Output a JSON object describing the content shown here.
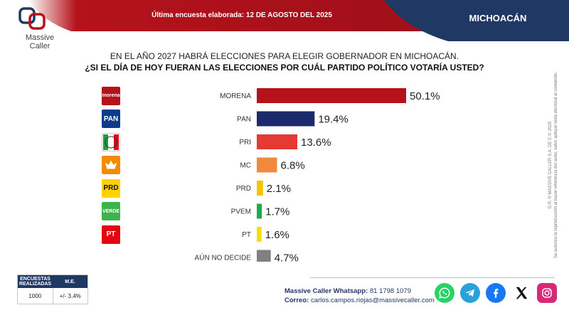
{
  "header": {
    "survey_date": "Última encuesta elaborada: 12 DE AGOSTO DEL 2025",
    "region": "MICHOACÁN",
    "brand_line1": "Massive",
    "brand_line2": "Caller",
    "colors": {
      "red_banner": "#b5121b",
      "navy_banner": "#1f3864"
    }
  },
  "question": {
    "line1": "EN EL AÑO 2027 HABRÁ ELECCIONES PARA ELEGIR GOBERNADOR EN MICHOACÁN.",
    "line2": "¿SI EL DÍA DE HOY FUERAN LAS ELECCIONES POR CUÁL PARTIDO POLÍTICO VOTARÍA USTED?"
  },
  "chart_data": {
    "type": "bar",
    "orientation": "horizontal",
    "categories": [
      "MORENA",
      "PAN",
      "PRI",
      "MC",
      "PRD",
      "PVEM",
      "PT",
      "AÚN NO DECIDE"
    ],
    "values": [
      50.1,
      19.4,
      13.6,
      6.8,
      2.1,
      1.7,
      1.6,
      4.7
    ],
    "value_labels": [
      "50.1%",
      "19.4%",
      "13.6%",
      "6.8%",
      "2.1%",
      "1.7%",
      "1.6%",
      "4.7%"
    ],
    "colors": [
      "#b5121b",
      "#1a2a6c",
      "#e53935",
      "#ef8a3c",
      "#f5c400",
      "#1faa4f",
      "#f5e100",
      "#808080"
    ],
    "logo_text": [
      "morena",
      "PAN",
      "PRI",
      "",
      "PRD",
      "VERDE",
      "PT",
      ""
    ],
    "logo_colors": [
      "#b5121b",
      "#0d3b8c",
      "#ffffff",
      "#f28b00",
      "#ffd100",
      "#3bb54a",
      "#e30613",
      ""
    ],
    "xlim": [
      0,
      55
    ],
    "title": "",
    "xlabel": "",
    "ylabel": ""
  },
  "copyright": {
    "line1": "D.R. © MASSIVE CALLER S.A. DE C.V. 2025",
    "line2": "Se autoriza la reproducción al hacer referencia del autor, salvo apliqué veda electoral al contenido."
  },
  "stats": {
    "col1_header": "ENCUESTAS REALIZADAS",
    "col2_header": "M.E.",
    "col1_value": "1000",
    "col2_value": "+/- 3.4%"
  },
  "footer": {
    "whatsapp_label": "Massive Caller Whatsapp:",
    "whatsapp_value": "81 1798 1079",
    "email_label": "Correo:",
    "email_value": "carlos.campos.riojas@massivecaller.com"
  },
  "socials": [
    {
      "name": "whatsapp-icon",
      "color": "#25d366"
    },
    {
      "name": "telegram-icon",
      "color": "#2aa1da"
    },
    {
      "name": "facebook-icon",
      "color": "#1877f2"
    },
    {
      "name": "x-icon",
      "color": "#111111"
    },
    {
      "name": "instagram-icon",
      "color": "#d62976"
    }
  ]
}
